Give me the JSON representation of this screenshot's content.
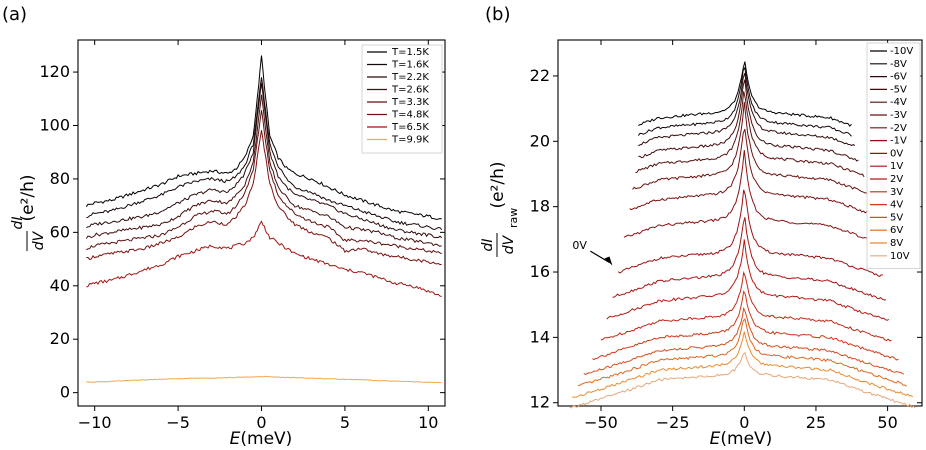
{
  "figure": {
    "panel_a_label": "(a)",
    "panel_b_label": "(b)"
  },
  "chart_data": [
    {
      "type": "line",
      "panel": "(a)",
      "title": "",
      "xlabel": "E(meV)",
      "ylabel": "dI/dV (e²/h)",
      "xlim": [
        -11,
        11
      ],
      "ylim": [
        -5,
        132
      ],
      "xticks": [
        -10,
        -5,
        0,
        5,
        10
      ],
      "yticks": [
        0,
        20,
        40,
        60,
        80,
        100,
        120
      ],
      "legend_position": "top-right",
      "x": [
        -10.5,
        -10,
        -9,
        -8,
        -7,
        -6,
        -5,
        -4,
        -3,
        -2,
        -1.5,
        -1,
        -0.5,
        -0.25,
        0,
        0.25,
        0.5,
        1,
        1.5,
        2,
        3,
        4,
        5,
        6,
        7,
        8,
        9,
        10,
        10.8
      ],
      "series": [
        {
          "name": "T=1.5K",
          "color": "#000000",
          "values": [
            70,
            71,
            72,
            74,
            76,
            78,
            81,
            82,
            83,
            82,
            84,
            88,
            96,
            110,
            126,
            110,
            96,
            88,
            84,
            82,
            80,
            77,
            74,
            72,
            70,
            68,
            67,
            66,
            65
          ]
        },
        {
          "name": "T=1.6K",
          "color": "#1a0808",
          "values": [
            66,
            67,
            68,
            70,
            72,
            74,
            77,
            79,
            80,
            79,
            81,
            85,
            93,
            105,
            118,
            105,
            93,
            85,
            80,
            77,
            75,
            72,
            70,
            68,
            66,
            64,
            63,
            62,
            61
          ]
        },
        {
          "name": "T=2.2K",
          "color": "#2e0c0c",
          "values": [
            62,
            63,
            64,
            65,
            66,
            68,
            71,
            74,
            76,
            75,
            78,
            82,
            90,
            103,
            116,
            103,
            90,
            81,
            77,
            74,
            72,
            70,
            67,
            65,
            63,
            61,
            60,
            59,
            58
          ]
        },
        {
          "name": "T=2.6K",
          "color": "#430f0f",
          "values": [
            58,
            59,
            60,
            61,
            62,
            63,
            66,
            70,
            72,
            71,
            74,
            78,
            86,
            98,
            112,
            98,
            86,
            77,
            73,
            70,
            68,
            66,
            62,
            61,
            60,
            58,
            57,
            56,
            55
          ]
        },
        {
          "name": "T=3.3K",
          "color": "#5e1010",
          "values": [
            54,
            55,
            56,
            57,
            58,
            59,
            62,
            66,
            68,
            67,
            70,
            75,
            83,
            94,
            106,
            94,
            83,
            74,
            70,
            67,
            64,
            62,
            57,
            57,
            56,
            55,
            54,
            53,
            52
          ]
        },
        {
          "name": "T=4.8K",
          "color": "#7d1111",
          "values": [
            50,
            51,
            52,
            53,
            54,
            56,
            58,
            62,
            64,
            63,
            66,
            70,
            78,
            88,
            98,
            88,
            78,
            70,
            66,
            63,
            60,
            58,
            53,
            54,
            52,
            51,
            50,
            49,
            48
          ]
        },
        {
          "name": "T=6.5K",
          "color": "#a31512",
          "values": [
            40,
            41,
            42,
            44,
            46,
            48,
            51,
            53,
            55,
            54,
            55,
            56,
            58,
            61,
            64,
            61,
            58,
            56,
            54,
            52,
            50,
            48,
            46,
            45,
            43,
            41,
            40,
            38,
            36
          ]
        },
        {
          "name": "T=9.9K",
          "color": "#f2a84e",
          "values": [
            4,
            4,
            4.2,
            4.5,
            4.8,
            5,
            5.2,
            5.4,
            5.5,
            5.6,
            5.7,
            5.8,
            5.9,
            6,
            6,
            6,
            5.9,
            5.8,
            5.7,
            5.6,
            5.4,
            5.2,
            5,
            4.8,
            4.5,
            4.3,
            4.1,
            3.9,
            3.7
          ]
        }
      ]
    },
    {
      "type": "line",
      "panel": "(b)",
      "title": "",
      "xlabel": "E(meV)",
      "ylabel": "dI/dV_raw (e²/h)",
      "xlim": [
        -65,
        62
      ],
      "ylim": [
        11.9,
        23.1
      ],
      "xticks": [
        -50,
        -25,
        0,
        25,
        50
      ],
      "yticks": [
        12,
        14,
        16,
        18,
        20,
        22
      ],
      "legend_position": "top-right",
      "annotation": {
        "text": "0V",
        "x": -46,
        "y": 16.2
      },
      "series": [
        {
          "name": "-10V",
          "color": "#000000",
          "xmin": -37,
          "xmax": 38,
          "base": 20.6,
          "peak": 22.55,
          "shoulder": 20.9
        },
        {
          "name": "-8V",
          "color": "#170606",
          "xmin": -37,
          "xmax": 38,
          "base": 20.3,
          "peak": 22.45,
          "shoulder": 20.6
        },
        {
          "name": "-6V",
          "color": "#2e0a0a",
          "xmin": -37,
          "xmax": 39,
          "base": 20.0,
          "peak": 22.3,
          "shoulder": 20.3
        },
        {
          "name": "-5V",
          "color": "#440d0d",
          "xmin": -37,
          "xmax": 40,
          "base": 19.6,
          "peak": 22.05,
          "shoulder": 19.9
        },
        {
          "name": "-4V",
          "color": "#581010",
          "xmin": -38,
          "xmax": 42,
          "base": 19.2,
          "peak": 21.7,
          "shoulder": 19.5
        },
        {
          "name": "-3V",
          "color": "#6a1010",
          "xmin": -39,
          "xmax": 44,
          "base": 18.7,
          "peak": 21.2,
          "shoulder": 19.0
        },
        {
          "name": "-2V",
          "color": "#7b1111",
          "xmin": -40,
          "xmax": 46,
          "base": 18.1,
          "peak": 20.6,
          "shoulder": 18.4
        },
        {
          "name": "-1V",
          "color": "#8b1212",
          "xmin": -42,
          "xmax": 48,
          "base": 17.3,
          "peak": 19.7,
          "shoulder": 17.6
        },
        {
          "name": "0V",
          "color": "#9b1212",
          "xmin": -44,
          "xmax": 49,
          "base": 16.3,
          "peak": 18.7,
          "shoulder": 16.6
        },
        {
          "name": "1V",
          "color": "#a81513",
          "xmin": -46,
          "xmax": 50,
          "base": 15.6,
          "peak": 17.8,
          "shoulder": 15.9
        },
        {
          "name": "2V",
          "color": "#b51b14",
          "xmin": -48,
          "xmax": 51,
          "base": 15.0,
          "peak": 17.0,
          "shoulder": 15.3
        },
        {
          "name": "3V",
          "color": "#c22916",
          "xmin": -50,
          "xmax": 52,
          "base": 14.4,
          "peak": 16.1,
          "shoulder": 14.65
        },
        {
          "name": "4V",
          "color": "#cc3a18",
          "xmin": -53,
          "xmax": 54,
          "base": 13.9,
          "peak": 15.5,
          "shoulder": 14.15
        },
        {
          "name": "5V",
          "color": "#d64e1b",
          "xmin": -56,
          "xmax": 56,
          "base": 13.5,
          "peak": 15.0,
          "shoulder": 13.75
        },
        {
          "name": "6V",
          "color": "#e0661f",
          "xmin": -58,
          "xmax": 57,
          "base": 13.2,
          "peak": 14.7,
          "shoulder": 13.45
        },
        {
          "name": "8V",
          "color": "#eb8a2f",
          "xmin": -60,
          "xmax": 59,
          "base": 12.9,
          "peak": 14.2,
          "shoulder": 13.15
        },
        {
          "name": "10V",
          "color": "#e7a87a",
          "xmin": -61,
          "xmax": 60,
          "base": 12.6,
          "peak": 13.6,
          "shoulder": 12.85
        }
      ]
    }
  ]
}
